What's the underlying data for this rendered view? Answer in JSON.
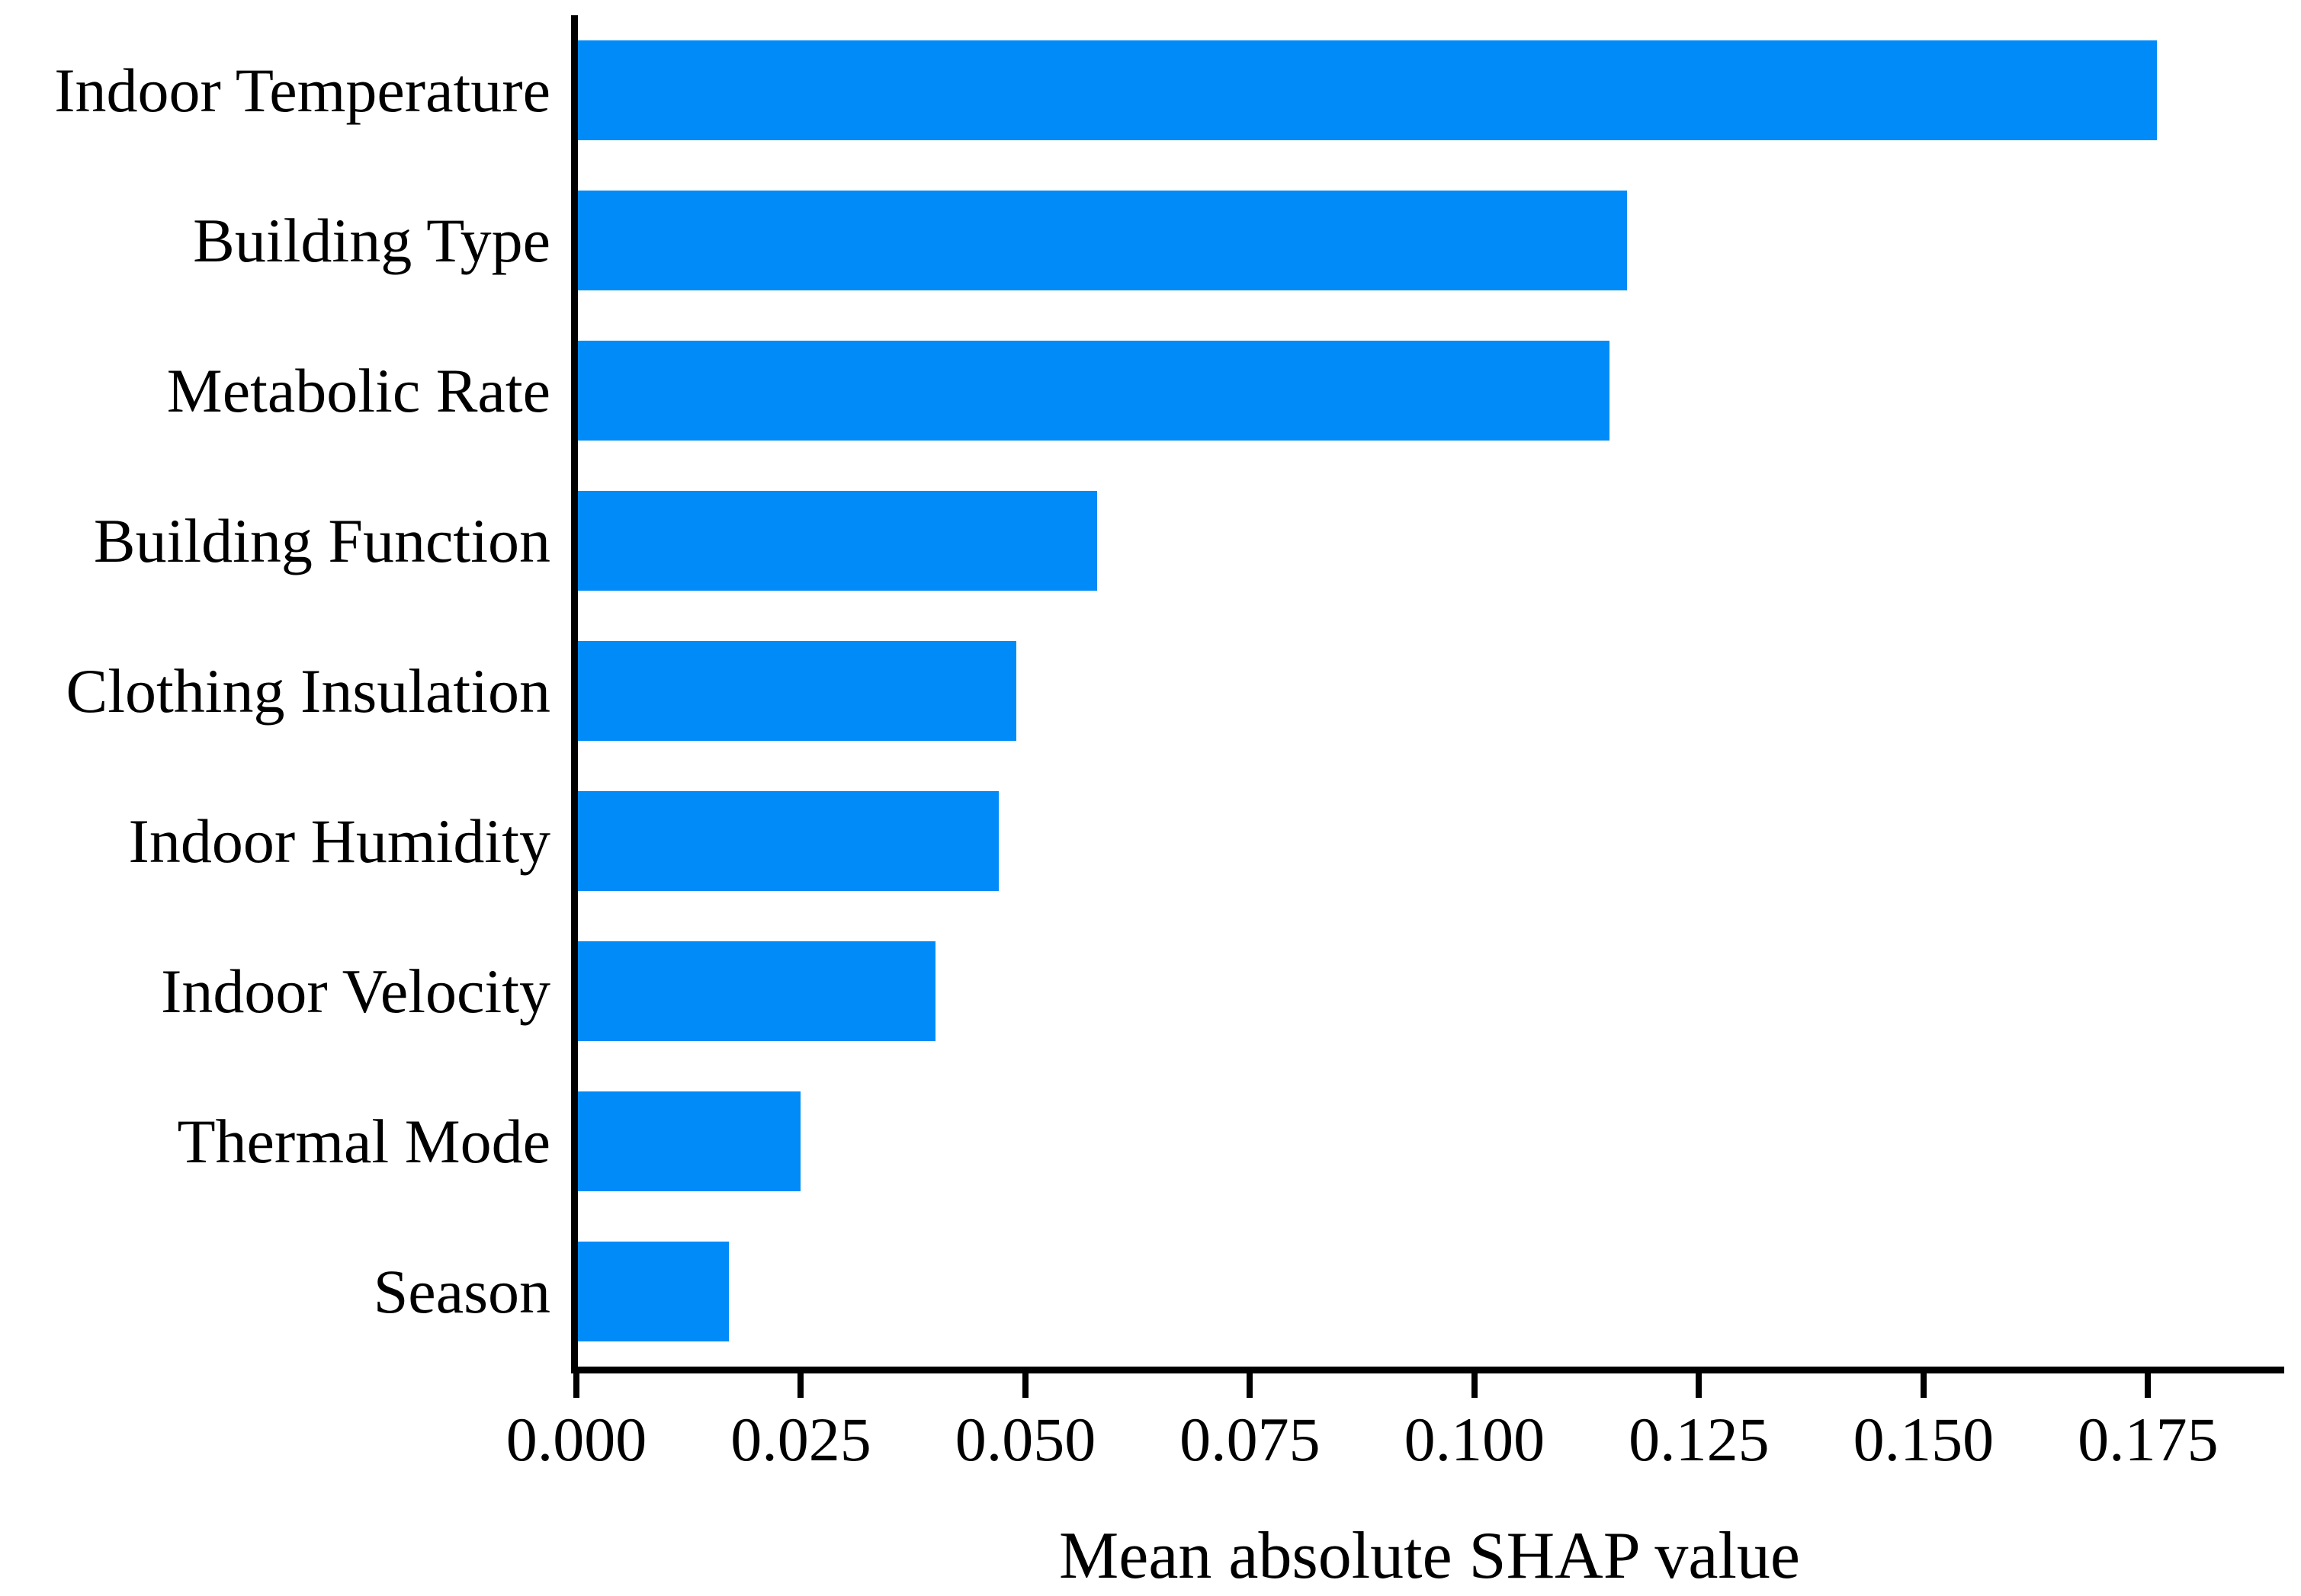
{
  "chart_data": {
    "type": "bar",
    "orientation": "horizontal",
    "title": "",
    "xlabel": "Mean absolute SHAP value",
    "ylabel": "",
    "categories": [
      "Indoor Temperature",
      "Building Type",
      "Metabolic Rate",
      "Building Function",
      "Clothing Insulation",
      "Indoor Humidity",
      "Indoor Velocity",
      "Thermal Mode",
      "Season"
    ],
    "values": [
      0.176,
      0.117,
      0.115,
      0.058,
      0.049,
      0.047,
      0.04,
      0.025,
      0.017
    ],
    "xlim": [
      0,
      0.19
    ],
    "xticks": [
      0.0,
      0.025,
      0.05,
      0.075,
      0.1,
      0.125,
      0.15,
      0.175
    ],
    "xtick_labels": [
      "0.000",
      "0.025",
      "0.050",
      "0.075",
      "0.100",
      "0.125",
      "0.150",
      "0.175"
    ],
    "grid": false,
    "legend_position": "none",
    "bar_color": "#008BF8",
    "axis_color": "#000000",
    "background_color": "#FFFFFF"
  }
}
